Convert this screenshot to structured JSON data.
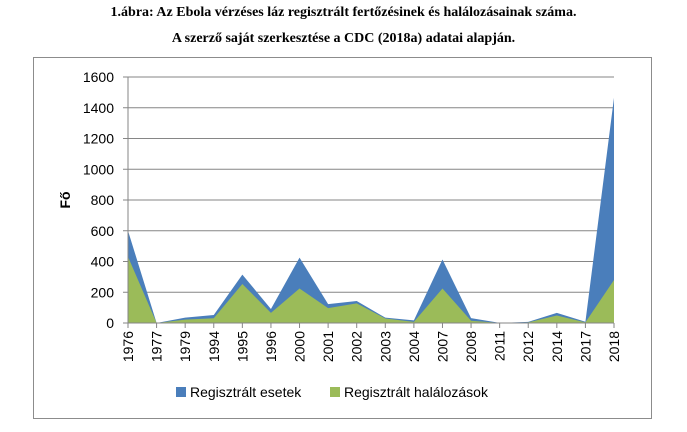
{
  "chart_data": {
    "type": "area",
    "title": "1.ábra: Az Ebola vérzéses láz regisztrált fertőzésinek és halálozásainak száma.",
    "subtitle": "A szerző saját szerkesztése a CDC (2018a) adatai alapján.",
    "xlabel": "",
    "ylabel": "Fő",
    "ylim": [
      0,
      1600
    ],
    "yticks": [
      0,
      200,
      400,
      600,
      800,
      1000,
      1200,
      1400,
      1600
    ],
    "grid": true,
    "legend_position": "bottom",
    "categories": [
      "1976",
      "1977",
      "1979",
      "1994",
      "1995",
      "1996",
      "2000",
      "2001",
      "2002",
      "2003",
      "2004",
      "2007",
      "2008",
      "2011",
      "2012",
      "2014",
      "2017",
      "2018"
    ],
    "series": [
      {
        "name": "Regisztrált esetek",
        "color": "#4a7ebb",
        "values": [
          600,
          0,
          35,
          52,
          315,
          91,
          425,
          123,
          143,
          35,
          17,
          413,
          32,
          1,
          7,
          66,
          8,
          1465
        ]
      },
      {
        "name": "Regisztrált halálozások",
        "color": "#9bbb59",
        "values": [
          431,
          0,
          22,
          31,
          254,
          66,
          224,
          97,
          128,
          29,
          7,
          224,
          15,
          1,
          4,
          49,
          4,
          280
        ]
      }
    ]
  }
}
